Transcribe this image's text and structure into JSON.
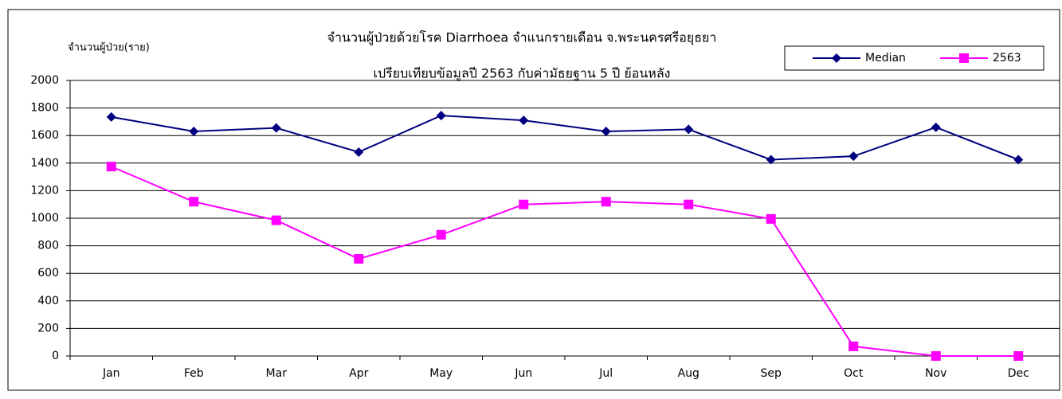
{
  "chart_data": {
    "type": "line",
    "title": "จำนวนผู้ป่วยด้วยโรค  Diarrhoea  จำแนกรายเดือน   จ.พระนครศรีอยุธยา",
    "subtitle": "เปรียบเทียบข้อมูลปี  2563  กับค่ามัธยฐาน 5 ปี ย้อนหลัง",
    "y_label": "จำนวนผู้ป่วย(ราย)",
    "categories": [
      "Jan",
      "Feb",
      "Mar",
      "Apr",
      "May",
      "Jun",
      "Jul",
      "Aug",
      "Sep",
      "Oct",
      "Nov",
      "Dec"
    ],
    "series": [
      {
        "name": "Median",
        "color": "#000080",
        "marker": "diamond",
        "values": [
          1735,
          1630,
          1655,
          1480,
          1745,
          1710,
          1630,
          1645,
          1425,
          1450,
          1660,
          1425
        ]
      },
      {
        "name": "2563",
        "color": "#ff00ff",
        "marker": "square",
        "values": [
          1375,
          1120,
          985,
          705,
          880,
          1100,
          1120,
          1100,
          995,
          70,
          0,
          0
        ]
      }
    ],
    "ylim": [
      0,
      2000
    ],
    "yticks": [
      0,
      200,
      400,
      600,
      800,
      1000,
      1200,
      1400,
      1600,
      1800,
      2000
    ],
    "grid": true,
    "legend": "top-right"
  }
}
